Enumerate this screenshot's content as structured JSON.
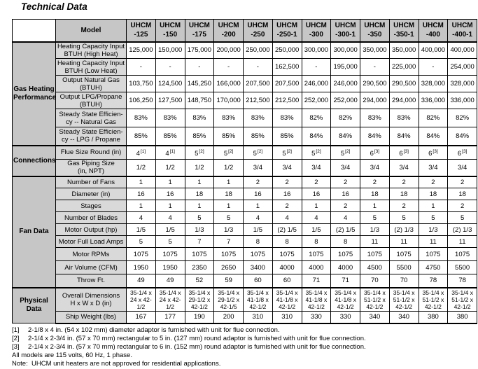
{
  "page": {
    "title": "Technical Data"
  },
  "colors": {
    "header_bg": "#c6c6c6",
    "category_bg": "#c6c6c6",
    "label_bg": "#d9d9d9",
    "border": "#000000"
  },
  "table": {
    "corner_label": "Model",
    "models": [
      {
        "brand": "UHCM",
        "suffix": "-125"
      },
      {
        "brand": "UHCM",
        "suffix": "-150"
      },
      {
        "brand": "UHCM",
        "suffix": "-175"
      },
      {
        "brand": "UHCM",
        "suffix": "-200"
      },
      {
        "brand": "UHCM",
        "suffix": "-250"
      },
      {
        "brand": "UHCM",
        "suffix": "-250-1"
      },
      {
        "brand": "UHCM",
        "suffix": "-300"
      },
      {
        "brand": "UHCM",
        "suffix": "-300-1"
      },
      {
        "brand": "UHCM",
        "suffix": "-350"
      },
      {
        "brand": "UHCM",
        "suffix": "-350-1"
      },
      {
        "brand": "UHCM",
        "suffix": "-400"
      },
      {
        "brand": "UHCM",
        "suffix": "-400-1"
      }
    ],
    "sections": [
      {
        "name": "Gas Heating\nPerformance",
        "rows": [
          {
            "label": "Heating Capacity Input\nBTUH (High Heat)",
            "values": [
              "125,000",
              "150,000",
              "175,000",
              "200,000",
              "250,000",
              "250,000",
              "300,000",
              "300,000",
              "350,000",
              "350,000",
              "400,000",
              "400,000"
            ]
          },
          {
            "label": "Heating Capacity Input\nBTUH (Low Heat)",
            "values": [
              "-",
              "-",
              "-",
              "-",
              "-",
              "162,500",
              "-",
              "195,000",
              "-",
              "225,000",
              "-",
              "254,000"
            ]
          },
          {
            "label": "Output Natural Gas\n(BTUH)",
            "values": [
              "103,750",
              "124,500",
              "145,250",
              "166,000",
              "207,500",
              "207,500",
              "246,000",
              "246,000",
              "290,500",
              "290,500",
              "328,000",
              "328,000"
            ]
          },
          {
            "label": "Output LPG/Propane\n(BTUH)",
            "values": [
              "106,250",
              "127,500",
              "148,750",
              "170,000",
              "212,500",
              "212,500",
              "252,000",
              "252,000",
              "294,000",
              "294,000",
              "336,000",
              "336,000"
            ]
          },
          {
            "label": "Steady State Efficien-\ncy -- Natural Gas",
            "values": [
              "83%",
              "83%",
              "83%",
              "83%",
              "83%",
              "83%",
              "82%",
              "82%",
              "83%",
              "83%",
              "82%",
              "82%"
            ]
          },
          {
            "label": "Steady State Efficien-\ncy -- LPG / Propane",
            "values": [
              "85%",
              "85%",
              "85%",
              "85%",
              "85%",
              "85%",
              "84%",
              "84%",
              "84%",
              "84%",
              "84%",
              "84%"
            ]
          }
        ]
      },
      {
        "name": "Connections",
        "rows": [
          {
            "label": "Flue Size Round (in)",
            "values": [
              {
                "v": "4",
                "sup": "[1]"
              },
              {
                "v": "4",
                "sup": "[1]"
              },
              {
                "v": "5",
                "sup": "[2]"
              },
              {
                "v": "5",
                "sup": "[2]"
              },
              {
                "v": "5",
                "sup": "[2]"
              },
              {
                "v": "5",
                "sup": "[2]"
              },
              {
                "v": "5",
                "sup": "[2]"
              },
              {
                "v": "5",
                "sup": "[2]"
              },
              {
                "v": "6",
                "sup": "[3]"
              },
              {
                "v": "6",
                "sup": "[3]"
              },
              {
                "v": "6",
                "sup": "[3]"
              },
              {
                "v": "6",
                "sup": "[3]"
              }
            ]
          },
          {
            "label": "Gas Piping Size\n(in, NPT)",
            "values": [
              "1/2",
              "1/2",
              "1/2",
              "1/2",
              "3/4",
              "3/4",
              "3/4",
              "3/4",
              "3/4",
              "3/4",
              "3/4",
              "3/4"
            ]
          }
        ]
      },
      {
        "name": "Fan Data",
        "rows": [
          {
            "label": "Number of Fans",
            "values": [
              "1",
              "1",
              "1",
              "1",
              "2",
              "2",
              "2",
              "2",
              "2",
              "2",
              "2",
              "2"
            ]
          },
          {
            "label": "Diameter (in)",
            "values": [
              "16",
              "16",
              "18",
              "18",
              "16",
              "16",
              "16",
              "16",
              "18",
              "18",
              "18",
              "18"
            ]
          },
          {
            "label": "Stages",
            "values": [
              "1",
              "1",
              "1",
              "1",
              "1",
              "2",
              "1",
              "2",
              "1",
              "2",
              "1",
              "2"
            ]
          },
          {
            "label": "Number of Blades",
            "values": [
              "4",
              "4",
              "5",
              "5",
              "4",
              "4",
              "4",
              "4",
              "5",
              "5",
              "5",
              "5"
            ]
          },
          {
            "label": "Motor Output (hp)",
            "values": [
              "1/5",
              "1/5",
              "1/3",
              "1/3",
              "1/5",
              "(2) 1/5",
              "1/5",
              "(2) 1/5",
              "1/3",
              "(2) 1/3",
              "1/3",
              "(2) 1/3"
            ]
          },
          {
            "label": "Motor Full Load Amps",
            "values": [
              "5",
              "5",
              "7",
              "7",
              "8",
              "8",
              "8",
              "8",
              "11",
              "11",
              "11",
              "11"
            ]
          },
          {
            "label": "Motor RPMs",
            "values": [
              "1075",
              "1075",
              "1075",
              "1075",
              "1075",
              "1075",
              "1075",
              "1075",
              "1075",
              "1075",
              "1075",
              "1075"
            ]
          },
          {
            "label": "Air Volume (CFM)",
            "values": [
              "1950",
              "1950",
              "2350",
              "2650",
              "3400",
              "4000",
              "4000",
              "4000",
              "4500",
              "5500",
              "4750",
              "5500"
            ]
          },
          {
            "label": "Throw Ft.",
            "values": [
              "49",
              "49",
              "52",
              "59",
              "60",
              "60",
              "71",
              "71",
              "70",
              "70",
              "78",
              "78"
            ]
          }
        ]
      },
      {
        "name": "Physical\nData",
        "rows": [
          {
            "label": "Overall Dimensions\nH x W x D (in)",
            "values": [
              "35-1/4 x\n24 x 42-\n1/2",
              "35-1/4 x\n24 x 42-\n1/2",
              "35-1/4 x\n29-1/2 x\n42-1/2",
              "35-1/4 x\n29-1/2 x\n42-1/5",
              "35-1/4 x\n41-1/8 x\n42-1/2",
              "35-1/4 x\n41-1/8 x\n42-1/2",
              "35-1/4 x\n41-1/8 x\n42-1/2",
              "35-1/4 x\n41-1/8 x\n42-1/2",
              "35-1/4 x\n51-1/2 x\n42-1/2",
              "35-1/4 x\n51-1/2 x\n42-1/2",
              "35-1/4 x\n51-1/2 x\n42-1/2",
              "35-1/4 x\n51-1/2 x\n42-1/2"
            ]
          },
          {
            "label": "Ship Weight (lbs)",
            "values": [
              "167",
              "177",
              "190",
              "200",
              "310",
              "310",
              "330",
              "330",
              "340",
              "340",
              "380",
              "380"
            ]
          }
        ]
      }
    ]
  },
  "footnotes": [
    {
      "marker": "[1]",
      "text": "2-1/8 x 4 in. (54 x 102 mm) diameter adaptor is furnished with unit for flue connection."
    },
    {
      "marker": "[2]",
      "text": "2-1/4 x 2-3/4 in. (57 x 70 mm) rectangular to 5 in. (127 mm) round adaptor is furnished with unit for flue connection."
    },
    {
      "marker": "[3]",
      "text": "2-1/4 x 2-3/4 in. (57 x 70 mm) rectangular to 6 in. (152 mm) round adaptor is furnished with unit for flue connection."
    }
  ],
  "notes": [
    "All models are 115 volts, 60 Hz, 1 phase.",
    "Note:  UHCM unit heaters are not approved for residential applications."
  ]
}
